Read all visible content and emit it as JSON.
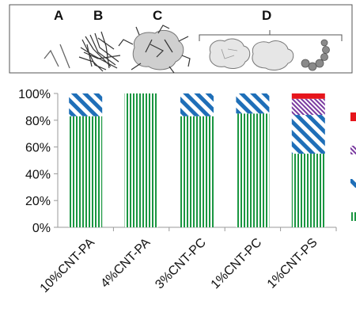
{
  "schematic": {
    "labels": [
      "A",
      "B",
      "C",
      "D"
    ]
  },
  "colors": {
    "green": "#1a9641",
    "blue": "#1f6fb8",
    "purple": "#7a3aa0",
    "red": "#e6151c",
    "axis": "#9a9a9a"
  },
  "chart_data": {
    "type": "bar",
    "stacked": true,
    "categories": [
      "10%CNT-PA",
      "4%CNT-PA",
      "3%CNT-PC",
      "1%CNT-PC",
      "1%CNT-PS"
    ],
    "series": [
      {
        "key": "A",
        "pattern": "vertical-green",
        "values": [
          83,
          100,
          83,
          85,
          55
        ]
      },
      {
        "key": "B",
        "pattern": "diagonal-blue",
        "values": [
          17,
          0,
          17,
          15,
          29
        ]
      },
      {
        "key": "C",
        "pattern": "diagonal-purple",
        "values": [
          0,
          0,
          0,
          0,
          12
        ]
      },
      {
        "key": "D",
        "pattern": "solid-red",
        "values": [
          0,
          0,
          0,
          0,
          4
        ]
      }
    ],
    "y_ticks": [
      "0%",
      "20%",
      "40%",
      "60%",
      "80%",
      "100%"
    ],
    "ylim": [
      0,
      100
    ],
    "legend": "right (clipped)",
    "grid": false
  }
}
